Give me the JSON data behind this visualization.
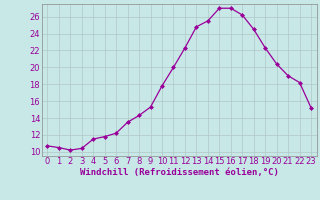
{
  "x": [
    0,
    1,
    2,
    3,
    4,
    5,
    6,
    7,
    8,
    9,
    10,
    11,
    12,
    13,
    14,
    15,
    16,
    17,
    18,
    19,
    20,
    21,
    22,
    23
  ],
  "y": [
    10.7,
    10.5,
    10.2,
    10.4,
    11.5,
    11.8,
    12.2,
    13.5,
    14.3,
    15.3,
    17.8,
    20.0,
    22.3,
    24.8,
    25.5,
    27.0,
    27.0,
    26.2,
    24.5,
    22.3,
    20.4,
    19.0,
    18.2,
    15.2
  ],
  "line_color": "#990099",
  "bg_color": "#c8e8e8",
  "grid_color": "#b0c8c8",
  "xlabel": "Windchill (Refroidissement éolien,°C)",
  "ylim": [
    10,
    27
  ],
  "xlim": [
    0,
    23
  ],
  "yticks": [
    10,
    12,
    14,
    16,
    18,
    20,
    22,
    24,
    26
  ],
  "xticks": [
    0,
    1,
    2,
    3,
    4,
    5,
    6,
    7,
    8,
    9,
    10,
    11,
    12,
    13,
    14,
    15,
    16,
    17,
    18,
    19,
    20,
    21,
    22,
    23
  ],
  "xlabel_color": "#990099",
  "tick_color": "#990099",
  "spine_color": "#888888",
  "font_size": 6.0,
  "xlabel_font_size": 6.5,
  "marker_size": 2.0,
  "line_width": 0.9
}
